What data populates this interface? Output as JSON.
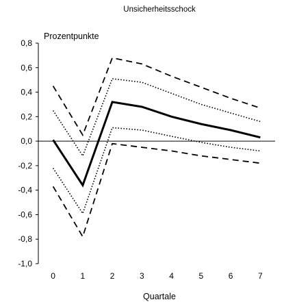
{
  "chart_data": {
    "type": "line",
    "title": "Unsicherheitsschock",
    "ylabel": "Prozentpunkte",
    "xlabel": "Quartale",
    "x": [
      0,
      1,
      2,
      3,
      4,
      5,
      6,
      7
    ],
    "ylim": [
      -1.0,
      0.8
    ],
    "yticks": [
      "0,8",
      "0,6",
      "0,4",
      "0,2",
      "0,0",
      "-0,2",
      "-0,4",
      "-0,6",
      "-0,8",
      "-1,0"
    ],
    "ytick_values": [
      0.8,
      0.6,
      0.4,
      0.2,
      0.0,
      -0.2,
      -0.4,
      -0.6,
      -0.8,
      -1.0
    ],
    "xticks": [
      "0",
      "1",
      "2",
      "3",
      "4",
      "5",
      "6",
      "7"
    ],
    "grid": false,
    "legend": false,
    "series": [
      {
        "style": "solid",
        "values": [
          0.01,
          -0.36,
          0.32,
          0.28,
          0.2,
          0.14,
          0.09,
          0.03
        ]
      },
      {
        "style": "dotted",
        "values": [
          0.25,
          -0.12,
          0.51,
          0.48,
          0.39,
          0.3,
          0.23,
          0.16
        ]
      },
      {
        "style": "dotted",
        "values": [
          -0.22,
          -0.59,
          0.11,
          0.09,
          0.04,
          -0.01,
          -0.05,
          -0.08
        ]
      },
      {
        "style": "dashed",
        "values": [
          0.45,
          0.05,
          0.68,
          0.63,
          0.53,
          0.44,
          0.35,
          0.27
        ]
      },
      {
        "style": "dashed",
        "values": [
          -0.37,
          -0.78,
          -0.02,
          -0.05,
          -0.08,
          -0.12,
          -0.15,
          -0.18
        ]
      }
    ]
  }
}
